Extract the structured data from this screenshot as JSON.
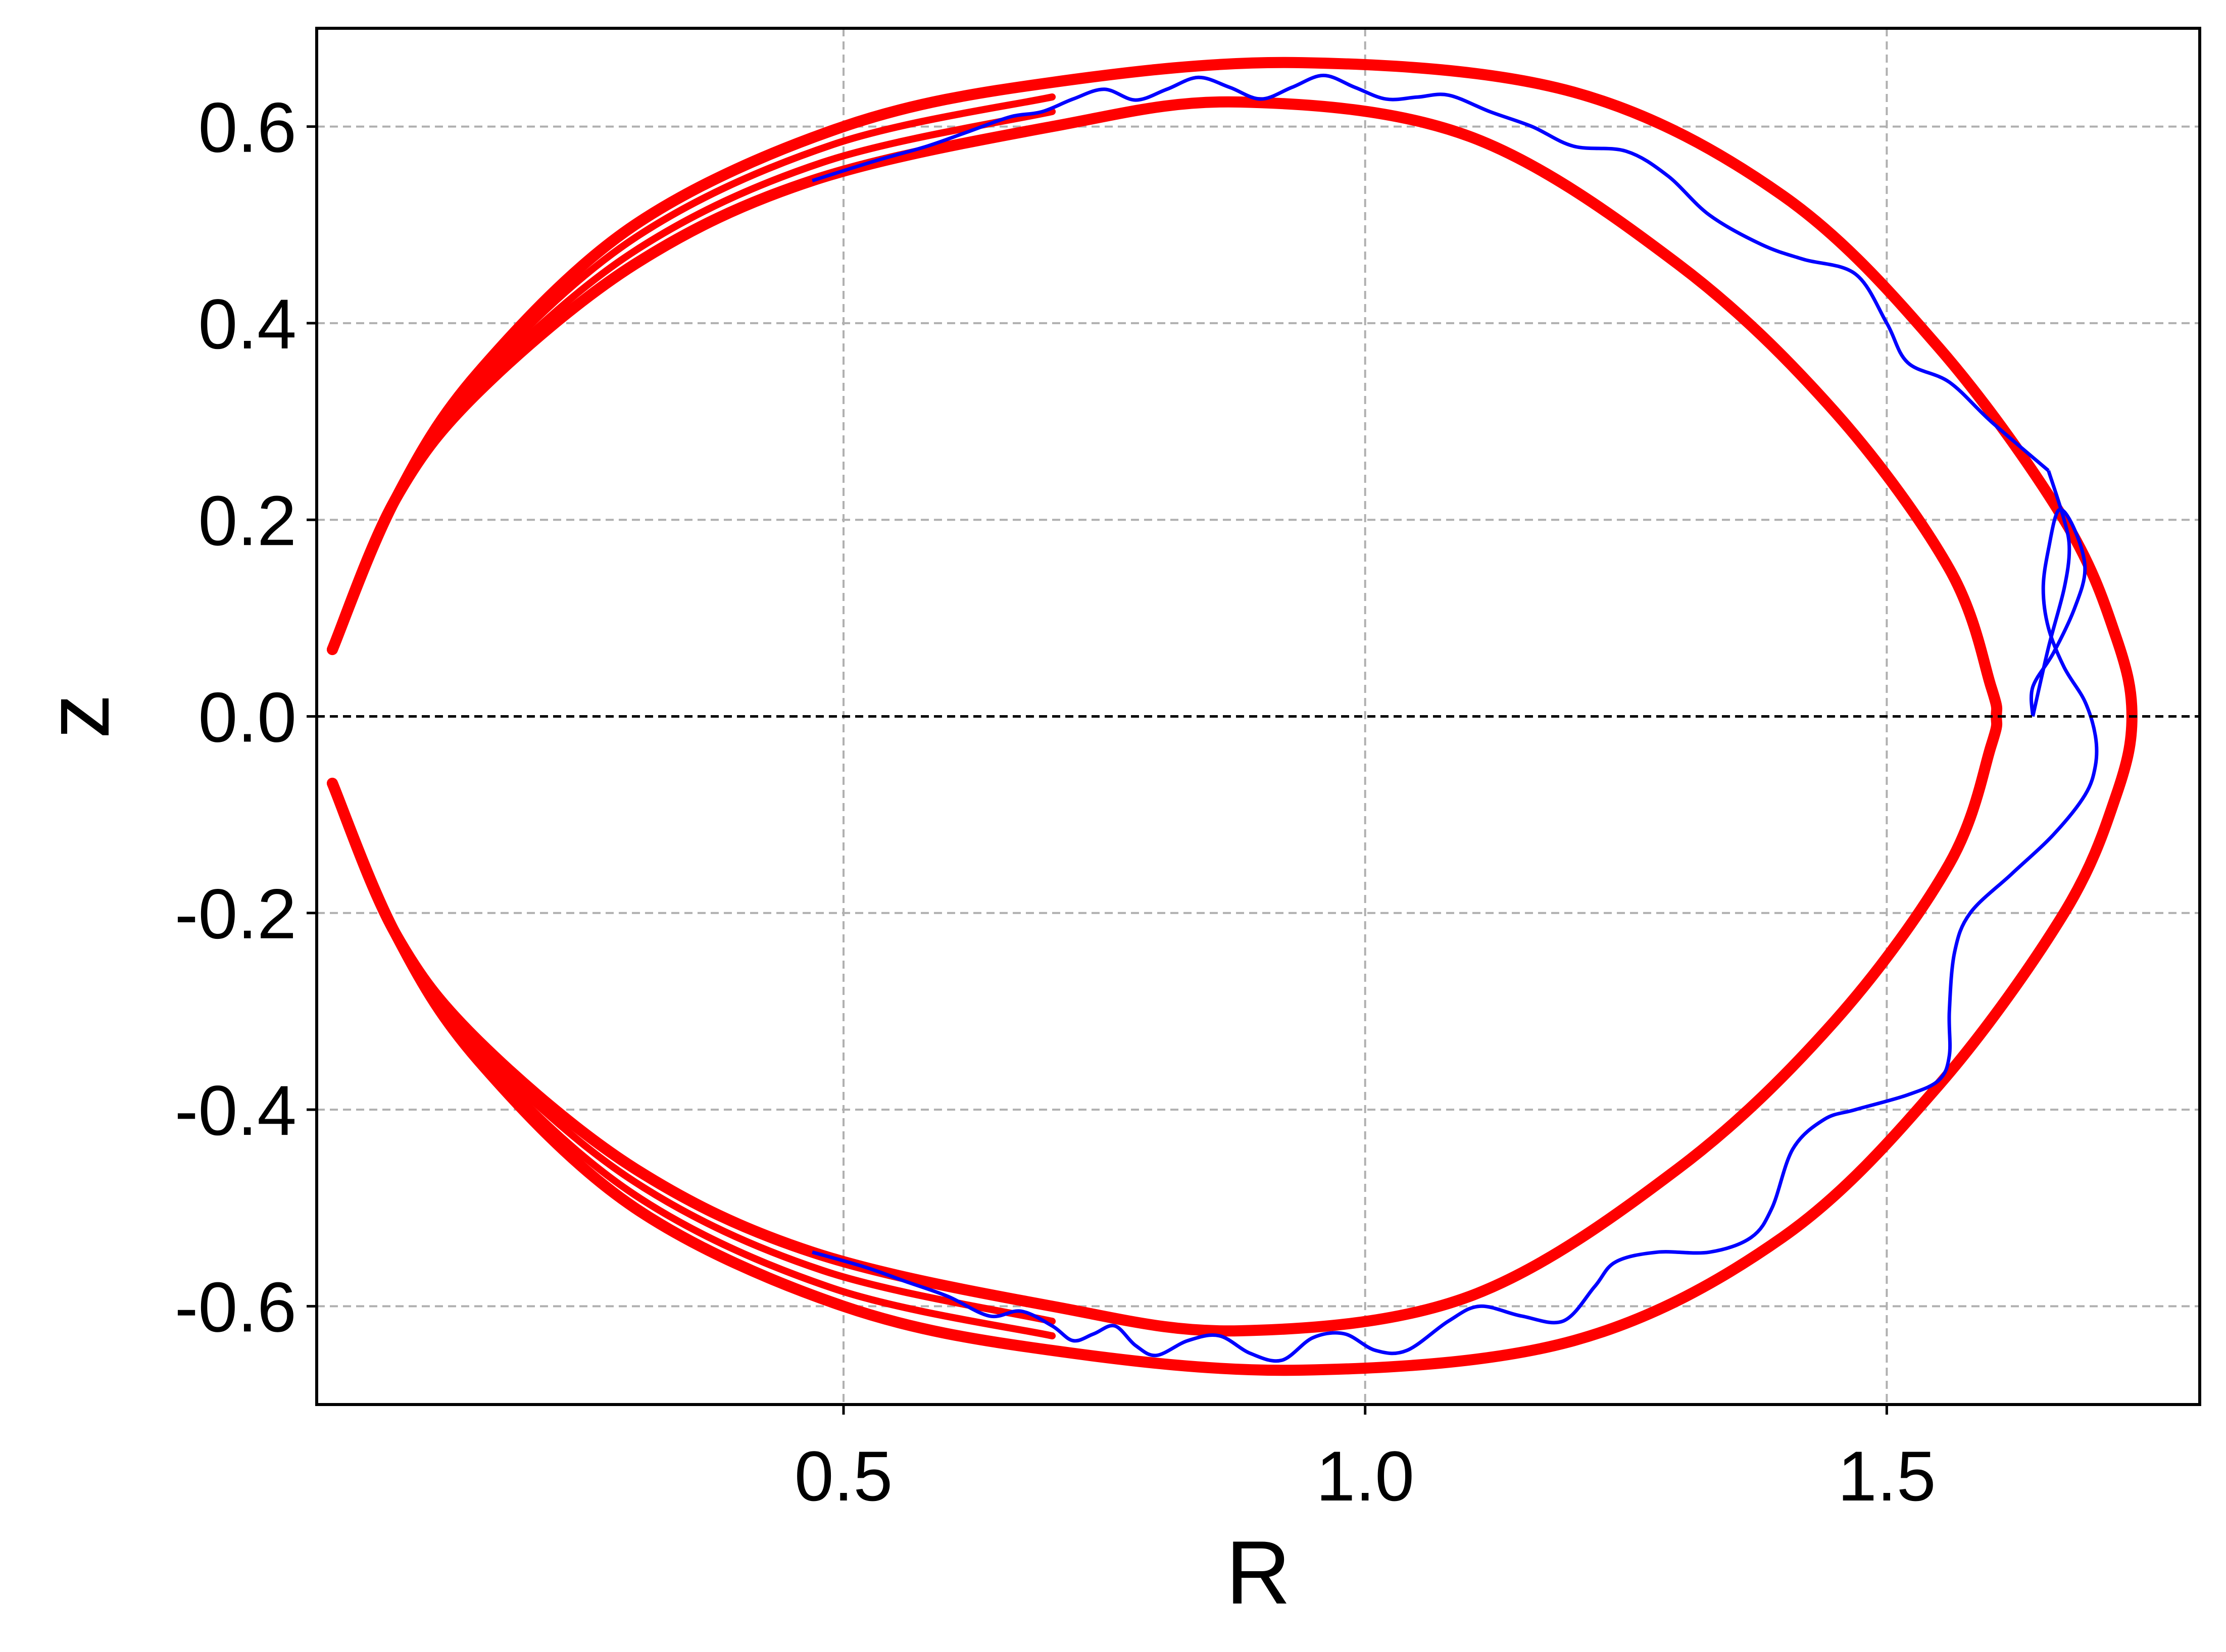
{
  "chart_data": {
    "type": "line",
    "xlabel": "R",
    "ylabel": "z",
    "xlim": [
      -0.005,
      1.8
    ],
    "ylim": [
      -0.7,
      0.7
    ],
    "xticks": [
      0.5,
      1.0,
      1.5
    ],
    "xtick_labels": [
      "0.5",
      "1.0",
      "1.5"
    ],
    "yticks": [
      -0.6,
      -0.4,
      -0.2,
      0.0,
      0.2,
      0.4,
      0.6
    ],
    "ytick_labels": [
      "-0.6",
      "-0.4",
      "-0.2",
      "0.0",
      "0.2",
      "0.4",
      "0.6"
    ],
    "grid": true,
    "zero_line_y": 0.0,
    "series": [
      {
        "color": "#ff0000",
        "style": "thick band of points",
        "outer_boundary": {
          "points": [
            [
              0.01,
              0.068
            ],
            [
              0.07,
              0.22
            ],
            [
              0.15,
              0.35
            ],
            [
              0.3,
              0.5
            ],
            [
              0.5,
              0.6
            ],
            [
              0.7,
              0.645
            ],
            [
              0.94,
              0.665
            ],
            [
              1.2,
              0.635
            ],
            [
              1.4,
              0.53
            ],
            [
              1.55,
              0.375
            ],
            [
              1.67,
              0.2
            ],
            [
              1.72,
              0.08
            ],
            [
              1.735,
              0.0
            ],
            [
              1.72,
              -0.08
            ],
            [
              1.67,
              -0.2
            ],
            [
              1.55,
              -0.375
            ],
            [
              1.4,
              -0.53
            ],
            [
              1.2,
              -0.635
            ],
            [
              0.94,
              -0.665
            ],
            [
              0.7,
              -0.645
            ],
            [
              0.5,
              -0.6
            ],
            [
              0.3,
              -0.5
            ],
            [
              0.15,
              -0.35
            ],
            [
              0.07,
              -0.22
            ],
            [
              0.01,
              -0.068
            ]
          ]
        },
        "inner_boundary": {
          "points": [
            [
              0.01,
              0.068
            ],
            [
              0.07,
              0.22
            ],
            [
              0.15,
              0.33
            ],
            [
              0.3,
              0.46
            ],
            [
              0.47,
              0.545
            ],
            [
              0.7,
              0.6
            ],
            [
              0.88,
              0.625
            ],
            [
              1.1,
              0.59
            ],
            [
              1.3,
              0.46
            ],
            [
              1.45,
              0.31
            ],
            [
              1.56,
              0.15
            ],
            [
              1.6,
              0.03
            ],
            [
              1.605,
              0.0
            ],
            [
              1.6,
              -0.03
            ],
            [
              1.56,
              -0.15
            ],
            [
              1.45,
              -0.31
            ],
            [
              1.3,
              -0.46
            ],
            [
              1.1,
              -0.59
            ],
            [
              0.88,
              -0.625
            ],
            [
              0.7,
              -0.6
            ],
            [
              0.47,
              -0.545
            ],
            [
              0.3,
              -0.46
            ],
            [
              0.15,
              -0.33
            ],
            [
              0.07,
              -0.22
            ],
            [
              0.01,
              -0.068
            ]
          ]
        }
      },
      {
        "color": "#0000ff",
        "style": "thin oscillating line",
        "points": [
          [
            1.64,
            0.0
          ],
          [
            1.64,
            0.03
          ],
          [
            1.66,
            0.065
          ],
          [
            1.68,
            0.11
          ],
          [
            1.69,
            0.15
          ],
          [
            1.68,
            0.19
          ],
          [
            1.665,
            0.21
          ],
          [
            1.655,
            0.17
          ],
          [
            1.65,
            0.13
          ],
          [
            1.655,
            0.09
          ],
          [
            1.67,
            0.05
          ],
          [
            1.69,
            0.015
          ],
          [
            1.7,
            -0.02
          ],
          [
            1.7,
            -0.05
          ],
          [
            1.69,
            -0.08
          ],
          [
            1.66,
            -0.12
          ],
          [
            1.62,
            -0.16
          ],
          [
            1.58,
            -0.2
          ],
          [
            1.565,
            -0.24
          ],
          [
            1.56,
            -0.3
          ],
          [
            1.56,
            -0.345
          ],
          [
            1.55,
            -0.37
          ],
          [
            1.52,
            -0.385
          ],
          [
            1.47,
            -0.4
          ],
          [
            1.44,
            -0.41
          ],
          [
            1.41,
            -0.44
          ],
          [
            1.39,
            -0.5
          ],
          [
            1.37,
            -0.53
          ],
          [
            1.33,
            -0.545
          ],
          [
            1.28,
            -0.545
          ],
          [
            1.24,
            -0.555
          ],
          [
            1.22,
            -0.58
          ],
          [
            1.19,
            -0.615
          ],
          [
            1.15,
            -0.61
          ],
          [
            1.11,
            -0.6
          ],
          [
            1.08,
            -0.615
          ],
          [
            1.04,
            -0.645
          ],
          [
            1.01,
            -0.645
          ],
          [
            0.98,
            -0.628
          ],
          [
            0.95,
            -0.632
          ],
          [
            0.92,
            -0.655
          ],
          [
            0.89,
            -0.648
          ],
          [
            0.86,
            -0.63
          ],
          [
            0.83,
            -0.635
          ],
          [
            0.8,
            -0.65
          ],
          [
            0.78,
            -0.64
          ],
          [
            0.76,
            -0.62
          ],
          [
            0.74,
            -0.628
          ],
          [
            0.72,
            -0.635
          ],
          [
            0.7,
            -0.62
          ],
          [
            0.67,
            -0.605
          ],
          [
            0.64,
            -0.61
          ],
          [
            0.6,
            -0.59
          ],
          [
            0.56,
            -0.575
          ],
          [
            0.52,
            -0.56
          ],
          [
            0.47,
            -0.545
          ]
        ]
      },
      {
        "color": "#0000ff",
        "style": "thin oscillating line",
        "points": [
          [
            1.655,
            0.25
          ],
          [
            1.6,
            0.3
          ],
          [
            1.56,
            0.34
          ],
          [
            1.52,
            0.36
          ],
          [
            1.5,
            0.4
          ],
          [
            1.47,
            0.45
          ],
          [
            1.42,
            0.465
          ],
          [
            1.38,
            0.48
          ],
          [
            1.33,
            0.51
          ],
          [
            1.29,
            0.55
          ],
          [
            1.25,
            0.575
          ],
          [
            1.2,
            0.58
          ],
          [
            1.16,
            0.6
          ],
          [
            1.12,
            0.615
          ],
          [
            1.08,
            0.632
          ],
          [
            1.05,
            0.63
          ],
          [
            1.02,
            0.628
          ],
          [
            0.99,
            0.64
          ],
          [
            0.96,
            0.652
          ],
          [
            0.93,
            0.64
          ],
          [
            0.9,
            0.628
          ],
          [
            0.87,
            0.64
          ],
          [
            0.84,
            0.65
          ],
          [
            0.81,
            0.638
          ],
          [
            0.78,
            0.627
          ],
          [
            0.75,
            0.638
          ],
          [
            0.72,
            0.628
          ],
          [
            0.69,
            0.615
          ],
          [
            0.66,
            0.61
          ],
          [
            0.62,
            0.595
          ],
          [
            0.58,
            0.58
          ],
          [
            0.53,
            0.565
          ],
          [
            0.47,
            0.545
          ]
        ]
      },
      {
        "color": "#0000ff",
        "style": "thin oscillating line",
        "points": [
          [
            1.64,
            0.0
          ],
          [
            1.655,
            0.07
          ],
          [
            1.67,
            0.13
          ],
          [
            1.675,
            0.17
          ],
          [
            1.67,
            0.2
          ],
          [
            1.655,
            0.25
          ]
        ]
      }
    ]
  }
}
